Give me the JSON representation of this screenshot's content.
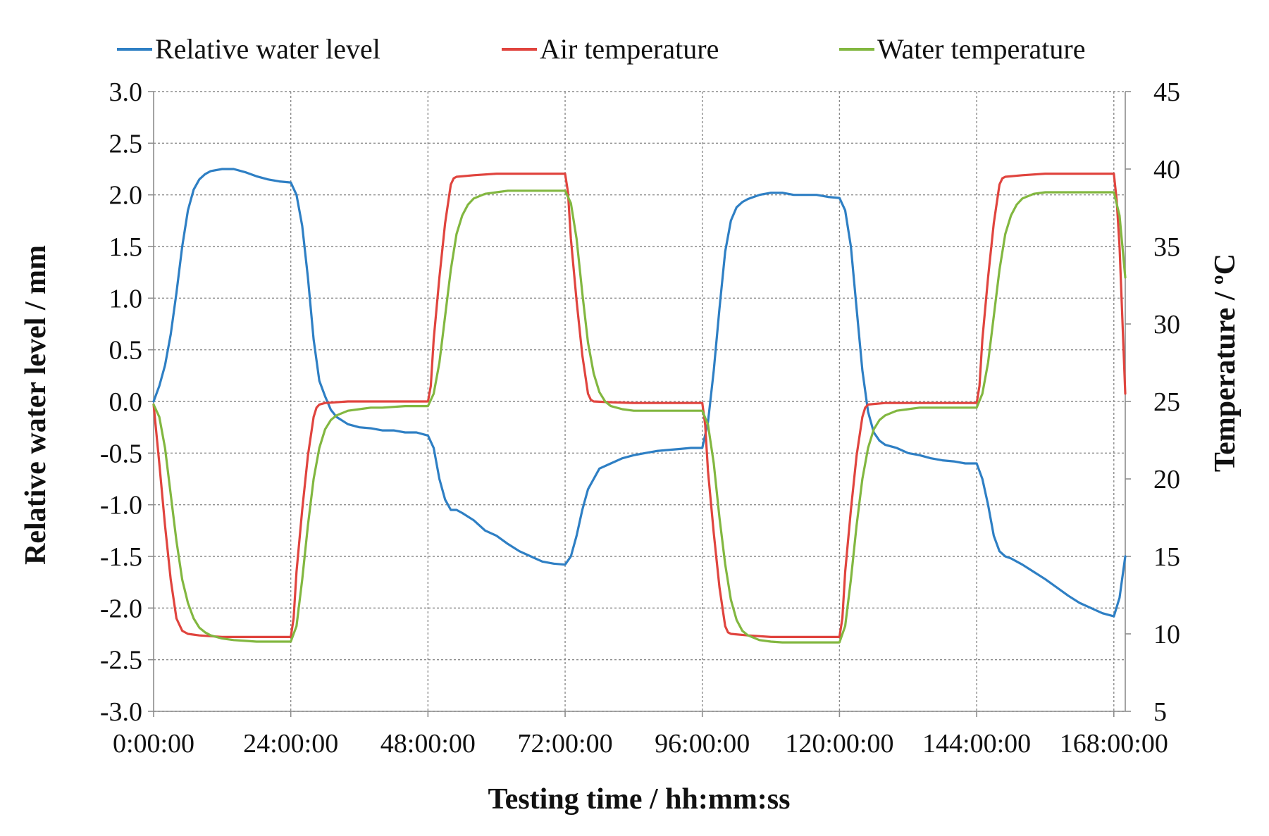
{
  "chart_data": {
    "type": "line",
    "xlabel": "Testing time / hh:mm:ss",
    "ylabel": "Relative water level / mm",
    "y2label": "Temperature / ºC",
    "xlim": [
      0,
      170
    ],
    "ylim": [
      -3.0,
      3.0
    ],
    "y2lim": [
      5,
      45
    ],
    "xticks": [
      0,
      24,
      48,
      72,
      96,
      120,
      144,
      168
    ],
    "xtick_labels": [
      "0:00:00",
      "24:00:00",
      "48:00:00",
      "72:00:00",
      "96:00:00",
      "120:00:00",
      "144:00:00",
      "168:00:00"
    ],
    "yticks": [
      3.0,
      2.5,
      2.0,
      1.5,
      1.0,
      0.5,
      0.0,
      -0.5,
      -1.0,
      -1.5,
      -2.0,
      -2.5,
      -3.0
    ],
    "ytick_labels": [
      "3.0",
      "2.5",
      "2.0",
      "1.5",
      "1.0",
      "0.5",
      "0.0",
      "-0.5",
      "-1.0",
      "-1.5",
      "-2.0",
      "-2.5",
      "-3.0"
    ],
    "y2ticks": [
      45,
      40,
      35,
      30,
      25,
      20,
      15,
      10,
      5
    ],
    "y2tick_labels": [
      "45",
      "40",
      "35",
      "30",
      "25",
      "20",
      "15",
      "10",
      "5"
    ],
    "grid": true,
    "legend_position": "top",
    "series": [
      {
        "name": "Relative water level",
        "axis": "left",
        "color": "#2e7fc4",
        "x": [
          0,
          1,
          2,
          3,
          4,
          5,
          6,
          7,
          8,
          9,
          10,
          12,
          14,
          16,
          18,
          20,
          22,
          24,
          25,
          26,
          27,
          28,
          29,
          30,
          31,
          32,
          34,
          36,
          38,
          40,
          42,
          44,
          46,
          48,
          49,
          50,
          51,
          52,
          53,
          54,
          56,
          58,
          60,
          62,
          64,
          66,
          68,
          70,
          72,
          73,
          74,
          75,
          76,
          77,
          78,
          80,
          82,
          84,
          86,
          88,
          90,
          92,
          94,
          96,
          97,
          98,
          99,
          100,
          101,
          102,
          103,
          104,
          106,
          108,
          110,
          112,
          114,
          116,
          118,
          120,
          121,
          122,
          123,
          124,
          125,
          126,
          127,
          128,
          130,
          132,
          134,
          136,
          138,
          140,
          142,
          144,
          145,
          146,
          147,
          148,
          149,
          150,
          152,
          154,
          156,
          158,
          160,
          162,
          164,
          166,
          168,
          169,
          170
        ],
        "values": [
          0.0,
          0.15,
          0.35,
          0.65,
          1.05,
          1.5,
          1.85,
          2.05,
          2.15,
          2.2,
          2.23,
          2.25,
          2.25,
          2.22,
          2.18,
          2.15,
          2.13,
          2.12,
          2.0,
          1.7,
          1.2,
          0.6,
          0.2,
          0.05,
          -0.08,
          -0.15,
          -0.22,
          -0.25,
          -0.26,
          -0.28,
          -0.28,
          -0.3,
          -0.3,
          -0.33,
          -0.45,
          -0.75,
          -0.95,
          -1.05,
          -1.05,
          -1.08,
          -1.15,
          -1.25,
          -1.3,
          -1.38,
          -1.45,
          -1.5,
          -1.55,
          -1.57,
          -1.58,
          -1.5,
          -1.3,
          -1.05,
          -0.85,
          -0.75,
          -0.65,
          -0.6,
          -0.55,
          -0.52,
          -0.5,
          -0.48,
          -0.47,
          -0.46,
          -0.45,
          -0.45,
          -0.2,
          0.3,
          0.9,
          1.45,
          1.75,
          1.88,
          1.93,
          1.96,
          2.0,
          2.02,
          2.02,
          2.0,
          2.0,
          2.0,
          1.98,
          1.97,
          1.85,
          1.5,
          0.9,
          0.3,
          -0.1,
          -0.3,
          -0.38,
          -0.42,
          -0.45,
          -0.5,
          -0.52,
          -0.55,
          -0.57,
          -0.58,
          -0.6,
          -0.6,
          -0.75,
          -1.0,
          -1.3,
          -1.45,
          -1.5,
          -1.52,
          -1.58,
          -1.65,
          -1.72,
          -1.8,
          -1.88,
          -1.95,
          -2.0,
          -2.05,
          -2.08,
          -1.9,
          -1.5
        ]
      },
      {
        "name": "Air temperature",
        "axis": "right",
        "color": "#e0443e",
        "x": [
          0,
          1,
          2,
          3,
          4,
          5,
          6,
          8,
          10,
          12,
          14,
          16,
          18,
          20,
          22,
          24,
          24.5,
          25,
          26,
          27,
          28,
          28.5,
          29,
          30,
          34,
          38,
          42,
          46,
          48,
          48.5,
          49,
          50,
          51,
          52,
          52.5,
          53,
          56,
          60,
          64,
          68,
          72,
          72.5,
          73,
          74,
          75,
          76,
          76.5,
          77,
          80,
          84,
          88,
          92,
          96,
          96.5,
          97,
          98,
          99,
          100,
          100.5,
          101,
          104,
          108,
          112,
          116,
          120,
          120.5,
          121,
          122,
          123,
          124,
          124.5,
          125,
          128,
          132,
          136,
          140,
          144,
          144.5,
          145,
          146,
          147,
          148,
          148.5,
          149,
          152,
          156,
          160,
          164,
          168,
          168.5,
          169,
          170
        ],
        "values": [
          24.8,
          21.0,
          17.0,
          13.5,
          11.0,
          10.2,
          10.0,
          9.9,
          9.85,
          9.8,
          9.8,
          9.8,
          9.8,
          9.8,
          9.8,
          9.8,
          11.0,
          14.0,
          18.0,
          21.5,
          24.0,
          24.6,
          24.8,
          24.9,
          25.0,
          25.0,
          25.0,
          25.0,
          25.0,
          26.0,
          29.0,
          33.0,
          36.5,
          39.0,
          39.4,
          39.5,
          39.6,
          39.7,
          39.7,
          39.7,
          39.7,
          38.5,
          35.5,
          31.5,
          28.0,
          25.5,
          25.1,
          25.0,
          24.95,
          24.9,
          24.9,
          24.9,
          24.9,
          23.5,
          20.5,
          16.5,
          13.0,
          10.5,
          10.1,
          10.0,
          9.9,
          9.8,
          9.8,
          9.8,
          9.8,
          11.0,
          14.0,
          18.0,
          21.5,
          24.0,
          24.6,
          24.8,
          24.9,
          24.9,
          24.9,
          24.9,
          24.9,
          26.0,
          29.0,
          33.0,
          36.5,
          39.0,
          39.4,
          39.5,
          39.6,
          39.7,
          39.7,
          39.7,
          39.7,
          38.0,
          35.0,
          25.5
        ]
      },
      {
        "name": "Water temperature",
        "axis": "right",
        "color": "#82b740",
        "x": [
          0,
          1,
          2,
          3,
          4,
          5,
          6,
          7,
          8,
          9,
          10,
          12,
          14,
          16,
          18,
          20,
          22,
          24,
          25,
          26,
          27,
          28,
          29,
          30,
          31,
          32,
          34,
          36,
          38,
          40,
          44,
          48,
          49,
          50,
          51,
          52,
          53,
          54,
          55,
          56,
          58,
          60,
          62,
          64,
          68,
          72,
          73,
          74,
          75,
          76,
          77,
          78,
          79,
          80,
          82,
          84,
          86,
          88,
          92,
          96,
          97,
          98,
          99,
          100,
          101,
          102,
          103,
          104,
          106,
          108,
          110,
          112,
          116,
          120,
          121,
          122,
          123,
          124,
          125,
          126,
          127,
          128,
          130,
          132,
          134,
          136,
          140,
          144,
          145,
          146,
          147,
          148,
          149,
          150,
          151,
          152,
          154,
          156,
          158,
          160,
          164,
          168,
          169,
          170
        ],
        "values": [
          24.8,
          24.0,
          22.0,
          19.0,
          16.0,
          13.5,
          12.0,
          11.0,
          10.4,
          10.1,
          9.9,
          9.7,
          9.6,
          9.55,
          9.5,
          9.5,
          9.5,
          9.5,
          10.5,
          13.5,
          17.0,
          20.0,
          22.0,
          23.2,
          23.8,
          24.1,
          24.4,
          24.5,
          24.6,
          24.6,
          24.7,
          24.7,
          25.5,
          27.5,
          30.5,
          33.5,
          35.8,
          37.0,
          37.7,
          38.1,
          38.4,
          38.5,
          38.6,
          38.6,
          38.6,
          38.6,
          37.8,
          35.5,
          32.0,
          28.8,
          26.8,
          25.6,
          25.0,
          24.7,
          24.5,
          24.4,
          24.4,
          24.4,
          24.4,
          24.4,
          23.5,
          21.0,
          17.5,
          14.5,
          12.2,
          10.9,
          10.2,
          9.9,
          9.6,
          9.5,
          9.45,
          9.45,
          9.45,
          9.45,
          10.5,
          13.5,
          17.0,
          20.0,
          22.0,
          23.2,
          23.8,
          24.1,
          24.4,
          24.5,
          24.6,
          24.6,
          24.6,
          24.6,
          25.5,
          27.5,
          30.5,
          33.5,
          35.8,
          37.0,
          37.7,
          38.1,
          38.4,
          38.5,
          38.5,
          38.5,
          38.5,
          38.5,
          37.0,
          33.0
        ]
      }
    ]
  }
}
